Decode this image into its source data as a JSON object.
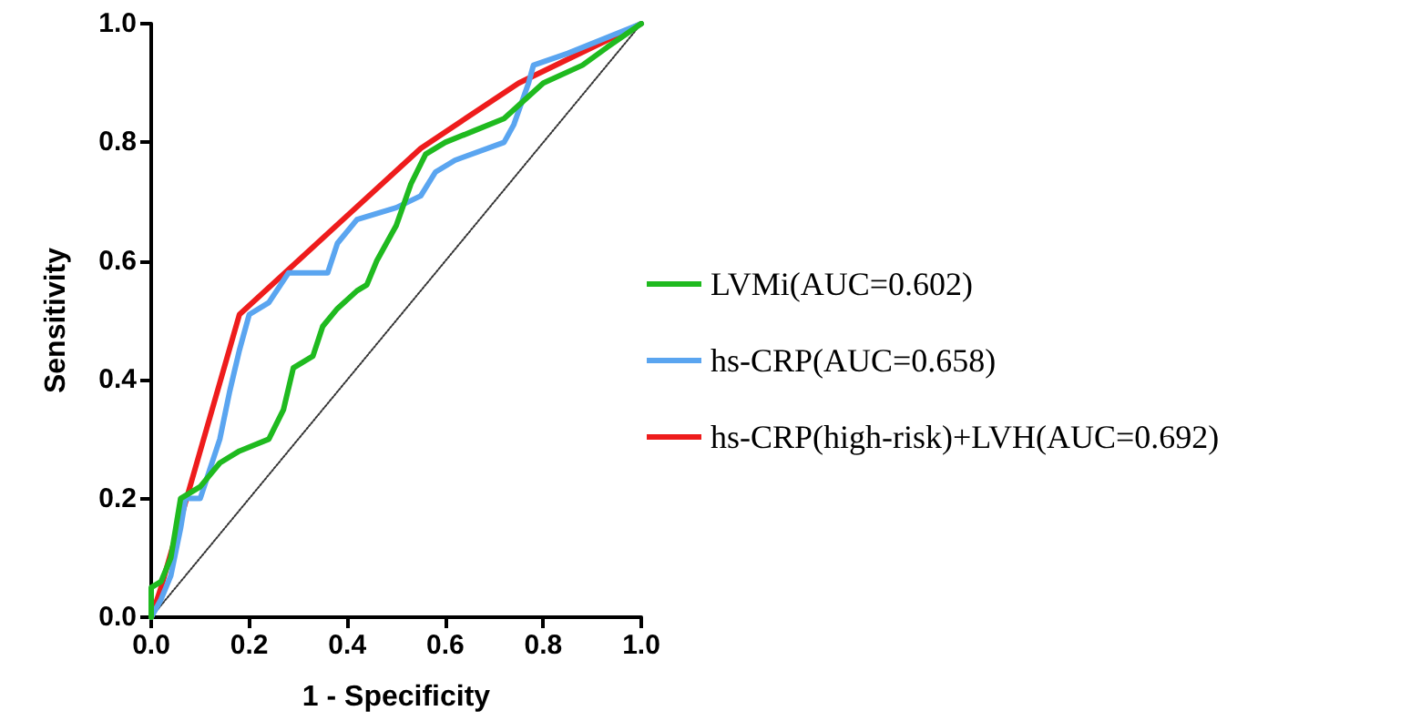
{
  "chart_data": {
    "type": "line",
    "xlabel": "1 - Specificity",
    "ylabel": "Sensitivity",
    "xlim": [
      0,
      1
    ],
    "ylim": [
      0,
      1
    ],
    "xticks": [
      {
        "value": 0,
        "label": "0.0"
      },
      {
        "value": 0.2,
        "label": "0.2"
      },
      {
        "value": 0.4,
        "label": "0.4"
      },
      {
        "value": 0.6,
        "label": "0.6"
      },
      {
        "value": 0.8,
        "label": "0.8"
      },
      {
        "value": 1,
        "label": "1.0"
      }
    ],
    "yticks": [
      {
        "value": 0,
        "label": "0.0"
      },
      {
        "value": 0.2,
        "label": "0.2"
      },
      {
        "value": 0.4,
        "label": "0.4"
      },
      {
        "value": 0.6,
        "label": "0.6"
      },
      {
        "value": 0.8,
        "label": "0.8"
      },
      {
        "value": 1,
        "label": "1.0"
      }
    ],
    "grid": false,
    "legend": "right",
    "marker": "none",
    "series": [
      {
        "name": "LVMi(AUC=0.602)",
        "color": "#1fba1f",
        "x": [
          0,
          0,
          0.02,
          0.04,
          0.05,
          0.06,
          0.1,
          0.14,
          0.18,
          0.24,
          0.27,
          0.29,
          0.33,
          0.35,
          0.38,
          0.42,
          0.44,
          0.46,
          0.5,
          0.53,
          0.56,
          0.6,
          0.66,
          0.72,
          0.76,
          0.8,
          0.88,
          0.93,
          1
        ],
        "values": [
          0,
          0.05,
          0.06,
          0.1,
          0.15,
          0.2,
          0.22,
          0.26,
          0.28,
          0.3,
          0.35,
          0.42,
          0.44,
          0.49,
          0.52,
          0.55,
          0.56,
          0.6,
          0.66,
          0.73,
          0.78,
          0.8,
          0.82,
          0.84,
          0.87,
          0.9,
          0.93,
          0.96,
          1
        ]
      },
      {
        "name": "hs-CRP(AUC=0.658)",
        "color": "#5aa5f0",
        "x": [
          0,
          0.02,
          0.04,
          0.06,
          0.07,
          0.1,
          0.12,
          0.14,
          0.16,
          0.18,
          0.2,
          0.24,
          0.28,
          0.36,
          0.38,
          0.42,
          0.5,
          0.55,
          0.58,
          0.62,
          0.72,
          0.74,
          0.77,
          0.78,
          0.85,
          1
        ],
        "values": [
          0,
          0.03,
          0.07,
          0.15,
          0.2,
          0.2,
          0.25,
          0.3,
          0.38,
          0.45,
          0.51,
          0.53,
          0.58,
          0.58,
          0.63,
          0.67,
          0.69,
          0.71,
          0.75,
          0.77,
          0.8,
          0.83,
          0.9,
          0.93,
          0.95,
          1
        ]
      },
      {
        "name": "hs-CRP(high-risk)+LVH(AUC=0.692)",
        "color": "#ee1c1c",
        "x": [
          0,
          0.02,
          0.18,
          0.55,
          0.75,
          1
        ],
        "values": [
          0,
          0.05,
          0.51,
          0.79,
          0.9,
          1
        ]
      },
      {
        "color": "#333333",
        "line_style": "dotted",
        "x": [
          0,
          1
        ],
        "values": [
          0,
          1
        ]
      }
    ]
  }
}
